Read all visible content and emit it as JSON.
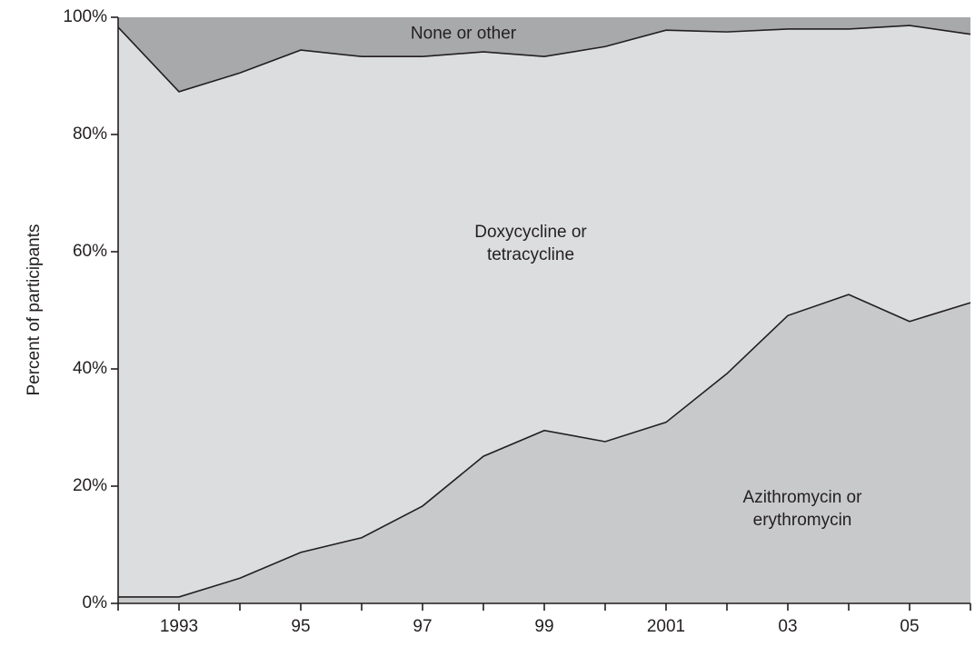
{
  "chart_data": {
    "type": "stacked_area",
    "y_label": "Percent of participants",
    "categories": [
      null,
      "1993",
      null,
      "95",
      null,
      "97",
      null,
      "99",
      null,
      "2001",
      null,
      "03",
      null,
      "05",
      null
    ],
    "series": [
      {
        "name": "Azithromycin or erythromycin",
        "color": "#c8c9cb",
        "values": [
          1.1,
          1.1,
          4.3,
          8.7,
          11.2,
          16.6,
          25.1,
          29.5,
          27.6,
          30.9,
          39.2,
          49.1,
          52.7,
          48.1,
          51.3
        ]
      },
      {
        "name": "Doxycycline or tetracycline",
        "color": "#dcdddf",
        "values": [
          97.2,
          86.2,
          86.2,
          85.7,
          82.1,
          76.7,
          69.0,
          63.8,
          67.4,
          66.9,
          58.3,
          48.9,
          45.3,
          50.5,
          45.8
        ]
      },
      {
        "name": "None or other",
        "color": "#a8a9ab",
        "values": [
          1.7,
          12.7,
          9.5,
          5.6,
          6.7,
          6.7,
          5.9,
          6.7,
          5.0,
          2.2,
          2.5,
          2.0,
          2.0,
          1.4,
          2.9
        ]
      }
    ],
    "ylim": [
      0,
      100
    ],
    "yticks": [
      {
        "value": 0,
        "label": "0%"
      },
      {
        "value": 20,
        "label": "20%"
      },
      {
        "value": 40,
        "label": "40%"
      },
      {
        "value": 60,
        "label": "60%"
      },
      {
        "value": 80,
        "label": "80%"
      },
      {
        "value": 100,
        "label": "100%"
      }
    ],
    "line_color": "#231f20"
  }
}
